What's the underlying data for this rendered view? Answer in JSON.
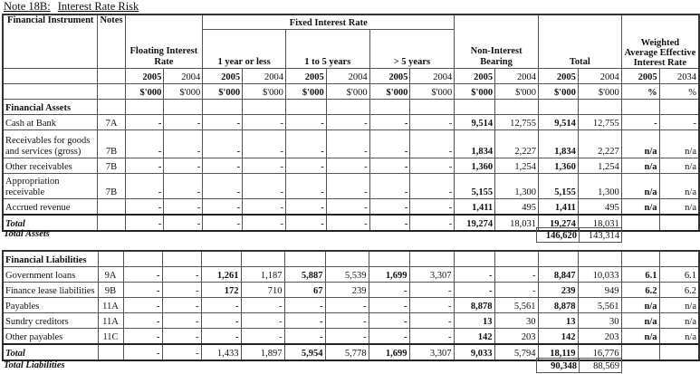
{
  "title": {
    "note": "Note 18B:",
    "name": "Interest Rate Risk"
  },
  "header": {
    "instrument": "Financial Instrument",
    "notes": "Notes",
    "fixed": "Fixed Interest Rate",
    "floating": "Floating Interest Rate",
    "one_year": "1 year or less",
    "one_to_five": "1 to 5  years",
    "over_five": ">  5 years",
    "non_interest": "Non-Interest Bearing",
    "total": "Total",
    "waeir": "Weighted Average Effective Interest Rate",
    "years": [
      "2005",
      "2004",
      "2005",
      "2004",
      "2005",
      "2004",
      "2005",
      "2004",
      "2005",
      "2004",
      "2005",
      "2004",
      "2005",
      "2034"
    ],
    "units": [
      "$'000",
      "$'000",
      "$'000",
      "$'000",
      "$'000",
      "$'000",
      "$'000",
      "$'000",
      "$'000",
      "$'000",
      "$'000",
      "$'000",
      "%",
      "%"
    ]
  },
  "assets": {
    "heading": "Financial Assets",
    "rows": [
      {
        "name": "Cash at Bank",
        "note": "7A",
        "values": [
          "-",
          "-",
          "-",
          "-",
          "-",
          "-",
          "-",
          "-",
          "9,514",
          "12,755",
          "9,514",
          "12,755",
          "-",
          "-"
        ]
      },
      {
        "name": "Receivables for goods and services (gross)",
        "note": "7B",
        "values": [
          "-",
          "-",
          "-",
          "-",
          "-",
          "-",
          "-",
          "-",
          "1,834",
          "2,227",
          "1,834",
          "2,227",
          "n/a",
          "n/a"
        ]
      },
      {
        "name": "Other receivables",
        "note": "7B",
        "values": [
          "-",
          "-",
          "-",
          "-",
          "-",
          "-",
          "-",
          "-",
          "1,360",
          "1,254",
          "1,360",
          "1,254",
          "n/a",
          "n/a"
        ]
      },
      {
        "name": "Appropriation receivable",
        "note": "7B",
        "values": [
          "-",
          "-",
          "-",
          "-",
          "-",
          "-",
          "-",
          "-",
          "5,155",
          "1,300",
          "5,155",
          "1,300",
          "n/a",
          "n/a"
        ]
      },
      {
        "name": "Accrued revenue",
        "note": "",
        "values": [
          "-",
          "-",
          "-",
          "-",
          "-",
          "-",
          "-",
          "-",
          "1,411",
          "495",
          "1,411",
          "495",
          "n/a",
          "n/a"
        ]
      }
    ],
    "total": {
      "name": "Total",
      "values": [
        "-",
        "-",
        "-",
        "-",
        "-",
        "-",
        "-",
        "-",
        "19,274",
        "18,031",
        "19,274",
        "18,031",
        "",
        ""
      ]
    },
    "grand_label": "Total Assets",
    "grand_values": [
      "146,620",
      "143,314"
    ]
  },
  "liabilities": {
    "heading": "Financial Liabilities",
    "rows": [
      {
        "name": "Government loans",
        "note": "9A",
        "values": [
          "-",
          "-",
          "1,261",
          "1,187",
          "5,887",
          "5,539",
          "1,699",
          "3,307",
          "-",
          "-",
          "8,847",
          "10,033",
          "6.1",
          "6.1"
        ]
      },
      {
        "name": "Finance lease liabilities",
        "note": "9B",
        "values": [
          "-",
          "-",
          "172",
          "710",
          "67",
          "239",
          "-",
          "-",
          "-",
          "-",
          "239",
          "949",
          "6.2",
          "6.2"
        ]
      },
      {
        "name": "Payables",
        "note": "11A",
        "values": [
          "-",
          "-",
          "-",
          "-",
          "-",
          "-",
          "-",
          "-",
          "8,878",
          "5,561",
          "8,878",
          "5,561",
          "n/a",
          "n/a"
        ]
      },
      {
        "name": "Sundry creditors",
        "note": "11A",
        "values": [
          "-",
          "-",
          "-",
          "-",
          "-",
          "-",
          "-",
          "-",
          "13",
          "30",
          "13",
          "30",
          "n/a",
          "n/a"
        ]
      },
      {
        "name": "Other payables",
        "note": "11C",
        "values": [
          "-",
          "-",
          "-",
          "-",
          "-",
          "-",
          "-",
          "-",
          "142",
          "203",
          "142",
          "203",
          "n/a",
          "n/a"
        ]
      }
    ],
    "total": {
      "name": "Total",
      "values": [
        "-",
        "-",
        "1,433",
        "1,897",
        "5,954",
        "5,778",
        "1,699",
        "3,307",
        "9,033",
        "5,794",
        "18,119",
        "16,776",
        "",
        ""
      ]
    },
    "grand_label": "Total Liabilities",
    "grand_values": [
      "90,348",
      "88,569"
    ]
  }
}
